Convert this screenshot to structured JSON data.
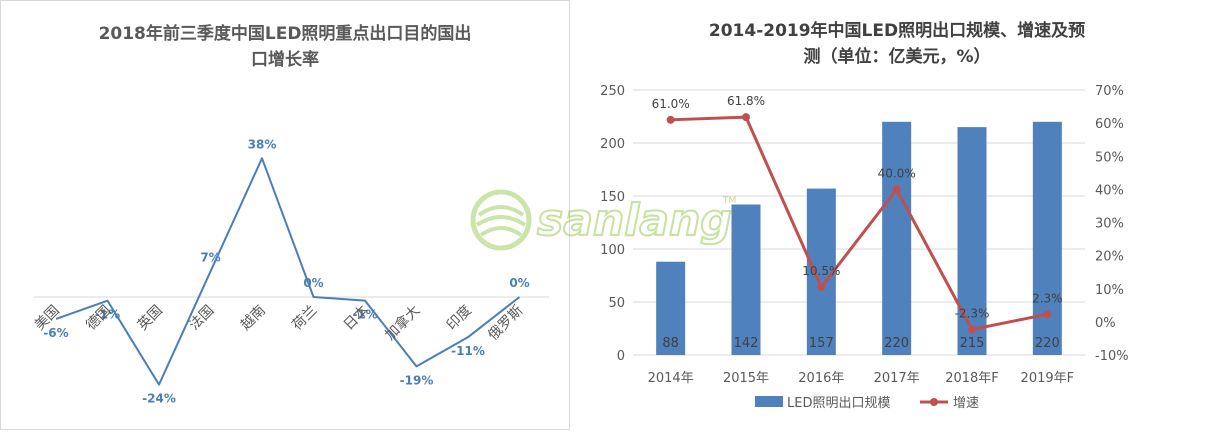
{
  "chart_data": [
    {
      "type": "line",
      "title": "2018年前三季度中国LED照明重点出口目的国出口增长率",
      "title_lines": [
        "2018年前三季度中国LED照明重点出口目的国出",
        "口增长率"
      ],
      "categories": [
        "美国",
        "德国",
        "英国",
        "法国",
        "越南",
        "荷兰",
        "日本",
        "加拿大",
        "印度",
        "俄罗斯"
      ],
      "series": [
        {
          "values": [
            -6,
            -1,
            -24,
            7,
            38,
            0,
            -1,
            -19,
            -11,
            0
          ],
          "labels": [
            "-6%",
            "-1%",
            "-24%",
            "7%",
            "38%",
            "0%",
            "-1%",
            "-19%",
            "-11%",
            "0%"
          ],
          "color": "#4a7ebb"
        }
      ],
      "ylim": [
        -30,
        45
      ],
      "grid": false
    },
    {
      "type": "bar",
      "title": "2014-2019年中国LED照明出口规模、增速及预测（单位：亿美元，%）",
      "title_lines": [
        "2014-2019年中国LED照明出口规模、增速及预",
        "测（单位：亿美元，%）"
      ],
      "categories": [
        "2014年",
        "2015年",
        "2016年",
        "2017年",
        "2018年F",
        "2019年F"
      ],
      "series": [
        {
          "name": "LED照明出口规模",
          "type": "bar",
          "axis": "left",
          "values": [
            88,
            142,
            157,
            220,
            215,
            220
          ],
          "labels": [
            "88",
            "142",
            "157",
            "220",
            "215",
            "220"
          ],
          "color": "#4f81bd"
        },
        {
          "name": "增速",
          "type": "line",
          "axis": "right",
          "values": [
            61.0,
            61.8,
            10.5,
            40.0,
            -2.3,
            2.3
          ],
          "labels": [
            "61.0%",
            "61.8%",
            "10.5%",
            "40.0%",
            "-2.3%",
            "2.3%"
          ],
          "color": "#c0504d"
        }
      ],
      "ylim_left": [
        0,
        250
      ],
      "yticks_left": [
        "0",
        "50",
        "100",
        "150",
        "200",
        "250"
      ],
      "ylim_right": [
        -10,
        70
      ],
      "yticks_right": [
        "-10%",
        "0%",
        "10%",
        "20%",
        "30%",
        "40%",
        "50%",
        "60%",
        "70%"
      ],
      "grid": true,
      "legend_position": "bottom"
    }
  ],
  "watermark": {
    "text": "sanlang",
    "mark": "TM",
    "icon": "globe-leaf-logo-icon",
    "color": "#8cc63f"
  }
}
